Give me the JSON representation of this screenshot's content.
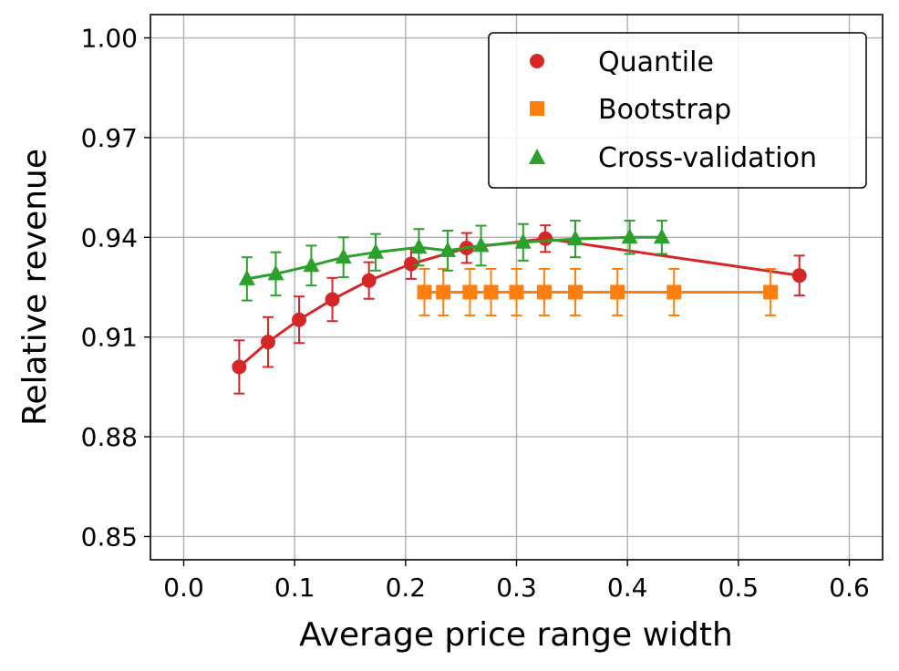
{
  "chart_data": {
    "type": "line",
    "title": "",
    "xlabel": "Average price range width",
    "ylabel": "Relative revenue",
    "xlim": [
      -0.03,
      0.63
    ],
    "ylim": [
      0.843,
      1.007
    ],
    "xticks": [
      0.0,
      0.1,
      0.2,
      0.3,
      0.4,
      0.5,
      0.6
    ],
    "xtick_labels": [
      "0.0",
      "0.1",
      "0.2",
      "0.3",
      "0.4",
      "0.5",
      "0.6"
    ],
    "yticks": [
      0.85,
      0.88,
      0.91,
      0.94,
      0.97,
      1.0
    ],
    "ytick_labels": [
      "0.85",
      "0.88",
      "0.91",
      "0.94",
      "0.97",
      "1.00"
    ],
    "grid": true,
    "legend_position": "top-right",
    "series": [
      {
        "name": "Quantile",
        "color": "#d62728",
        "marker": "circle",
        "x": [
          0.05,
          0.076,
          0.104,
          0.134,
          0.167,
          0.205,
          0.255,
          0.326,
          0.555
        ],
        "y": [
          0.901,
          0.9085,
          0.9152,
          0.9213,
          0.927,
          0.932,
          0.9368,
          0.9396,
          0.9285
        ],
        "err": [
          0.008,
          0.0075,
          0.007,
          0.0065,
          0.0055,
          0.0045,
          0.0045,
          0.004,
          0.006
        ]
      },
      {
        "name": "Bootstrap",
        "color": "#ff7f0e",
        "marker": "square",
        "x": [
          0.217,
          0.234,
          0.258,
          0.277,
          0.3,
          0.325,
          0.353,
          0.391,
          0.442,
          0.529
        ],
        "y": [
          0.9235,
          0.9235,
          0.9235,
          0.9235,
          0.9235,
          0.9235,
          0.9235,
          0.9235,
          0.9235,
          0.9235
        ],
        "err": [
          0.007,
          0.007,
          0.007,
          0.007,
          0.007,
          0.007,
          0.007,
          0.007,
          0.007,
          0.007
        ]
      },
      {
        "name": "Cross-validation",
        "color": "#2ca02c",
        "marker": "triangle",
        "x": [
          0.057,
          0.083,
          0.115,
          0.144,
          0.173,
          0.212,
          0.238,
          0.268,
          0.306,
          0.353,
          0.402,
          0.431
        ],
        "y": [
          0.9275,
          0.929,
          0.9315,
          0.934,
          0.9355,
          0.937,
          0.936,
          0.9375,
          0.9385,
          0.9395,
          0.94,
          0.94
        ],
        "err": [
          0.0065,
          0.0065,
          0.006,
          0.006,
          0.0055,
          0.0055,
          0.006,
          0.006,
          0.0055,
          0.0055,
          0.005,
          0.005
        ]
      }
    ]
  }
}
